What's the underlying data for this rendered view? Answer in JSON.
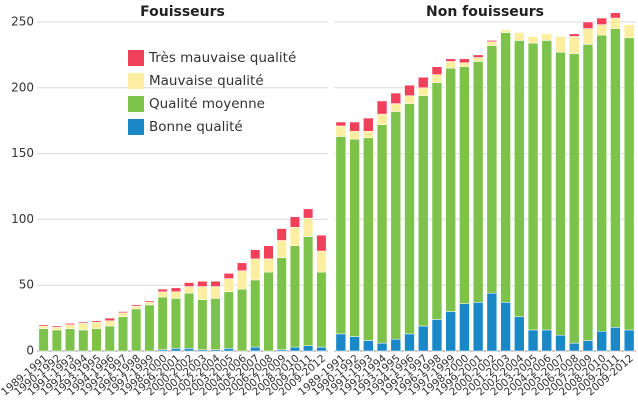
{
  "chart_data": {
    "type": "bar",
    "stacked": true,
    "grid": true,
    "legend": "upper left",
    "categories": [
      "1989-1991",
      "1990-1992",
      "1991-1993",
      "1992-1994",
      "1993-1995",
      "1994-1996",
      "1995-1997",
      "1996-1998",
      "1997-1999",
      "1998-2000",
      "1999-2001",
      "2000-2002",
      "2001-2003",
      "2002-2004",
      "2003-2005",
      "2004-2006",
      "2005-2007",
      "2006-2008",
      "2007-2009",
      "2008-2010",
      "2009-2011",
      "2009-2012"
    ],
    "ylim": [
      0,
      250
    ],
    "yticks": [
      0,
      50,
      100,
      150,
      200,
      250
    ],
    "series": [
      {
        "name": "Bonne qualité",
        "color": "#1a87c7"
      },
      {
        "name": "Qualité moyenne",
        "color": "#7dc24b"
      },
      {
        "name": "Mauvaise qualité",
        "color": "#fbeea0"
      },
      {
        "name": "Très mauvaise qualité",
        "color": "#f0405a"
      }
    ],
    "panels": [
      {
        "title": "Fouisseurs",
        "series_values": [
          [
            0,
            0,
            0,
            0,
            0,
            0,
            0,
            0,
            0,
            1,
            2,
            2,
            1,
            1,
            2,
            0,
            3,
            0,
            1,
            3,
            4,
            3
          ],
          [
            17,
            16,
            17,
            16,
            17,
            19,
            26,
            32,
            35,
            40,
            38,
            42,
            38,
            39,
            43,
            47,
            51,
            60,
            70,
            77,
            83,
            57
          ],
          [
            2,
            2,
            3,
            5,
            5,
            4,
            3,
            2,
            2,
            4,
            5,
            5,
            10,
            9,
            10,
            14,
            16,
            10,
            13,
            14,
            14,
            16
          ],
          [
            1,
            1,
            1,
            1,
            1,
            2,
            1,
            1,
            1,
            2,
            3,
            3,
            4,
            4,
            4,
            6,
            7,
            10,
            9,
            8,
            7,
            12
          ]
        ]
      },
      {
        "title": "Non fouisseurs",
        "series_values": [
          [
            13,
            11,
            8,
            6,
            9,
            13,
            19,
            24,
            30,
            36,
            37,
            44,
            37,
            26,
            16,
            16,
            12,
            6,
            8,
            15,
            18,
            16
          ],
          [
            150,
            150,
            154,
            166,
            173,
            175,
            175,
            180,
            185,
            180,
            183,
            188,
            205,
            210,
            218,
            220,
            215,
            220,
            225,
            225,
            227,
            222
          ],
          [
            8,
            6,
            5,
            8,
            6,
            6,
            6,
            6,
            5,
            3,
            3,
            3,
            2,
            6,
            5,
            5,
            12,
            13,
            12,
            8,
            8,
            10
          ],
          [
            3,
            7,
            10,
            10,
            8,
            8,
            8,
            6,
            2,
            3,
            2,
            1,
            0,
            0,
            0,
            0,
            0,
            2,
            5,
            5,
            4,
            0
          ]
        ]
      }
    ]
  }
}
